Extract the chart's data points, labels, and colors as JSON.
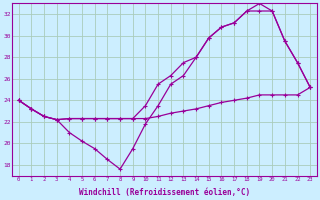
{
  "xlabel": "Windchill (Refroidissement éolien,°C)",
  "background_color": "#cceeff",
  "grid_color": "#aaccbb",
  "line_color": "#990099",
  "hours": [
    0,
    1,
    2,
    3,
    4,
    5,
    6,
    7,
    8,
    9,
    10,
    11,
    12,
    13,
    14,
    15,
    16,
    17,
    18,
    19,
    20,
    21,
    22,
    23
  ],
  "series1": [
    24.0,
    23.2,
    22.5,
    22.2,
    22.3,
    22.3,
    22.3,
    22.3,
    22.3,
    22.3,
    22.3,
    22.5,
    22.8,
    23.0,
    23.2,
    23.5,
    23.8,
    24.0,
    24.2,
    24.5,
    24.5,
    24.5,
    24.5,
    25.2
  ],
  "series2": [
    24.0,
    23.2,
    22.5,
    22.2,
    21.0,
    20.2,
    19.5,
    18.5,
    17.6,
    19.5,
    21.8,
    23.5,
    25.5,
    26.3,
    28.0,
    29.8,
    30.8,
    31.2,
    32.3,
    33.0,
    32.3,
    29.5,
    27.5,
    25.2
  ],
  "series3": [
    24.0,
    23.2,
    22.5,
    22.2,
    22.3,
    22.3,
    22.3,
    22.3,
    22.3,
    22.3,
    23.5,
    25.5,
    26.3,
    27.5,
    28.0,
    29.8,
    30.8,
    31.2,
    32.3,
    32.3,
    32.3,
    29.5,
    27.5,
    25.2
  ],
  "ylim": [
    17,
    33
  ],
  "xlim": [
    -0.5,
    23.5
  ],
  "yticks": [
    18,
    20,
    22,
    24,
    26,
    28,
    30,
    32
  ],
  "xticks": [
    0,
    1,
    2,
    3,
    4,
    5,
    6,
    7,
    8,
    9,
    10,
    11,
    12,
    13,
    14,
    15,
    16,
    17,
    18,
    19,
    20,
    21,
    22,
    23
  ]
}
